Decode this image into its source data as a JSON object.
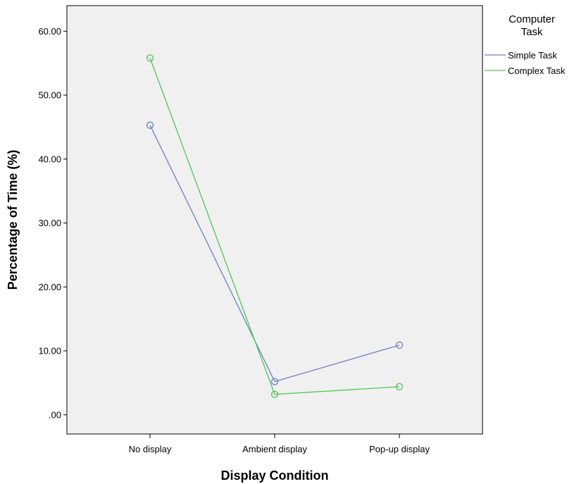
{
  "chart_data": {
    "type": "line",
    "title": "",
    "xlabel": "Display Condition",
    "ylabel": "Percentage of Time (%)",
    "categories": [
      "No display",
      "Ambient display",
      "Pop-up display"
    ],
    "ylim": [
      -3,
      64
    ],
    "yticks": [
      {
        "value": 0,
        "label": ".00"
      },
      {
        "value": 10,
        "label": "10.00"
      },
      {
        "value": 20,
        "label": "20.00"
      },
      {
        "value": 30,
        "label": "30.00"
      },
      {
        "value": 40,
        "label": "40.00"
      },
      {
        "value": 50,
        "label": "50.00"
      },
      {
        "value": 60,
        "label": "60.00"
      }
    ],
    "grid": false,
    "legend": {
      "title_line1": "Computer",
      "title_line2": "Task",
      "placement": "right"
    },
    "series": [
      {
        "name": "Simple Task",
        "color": "#6c7fc4",
        "values": [
          45.3,
          5.2,
          10.9
        ]
      },
      {
        "name": "Complex Task",
        "color": "#50c450",
        "values": [
          55.8,
          3.2,
          4.4
        ]
      }
    ]
  }
}
